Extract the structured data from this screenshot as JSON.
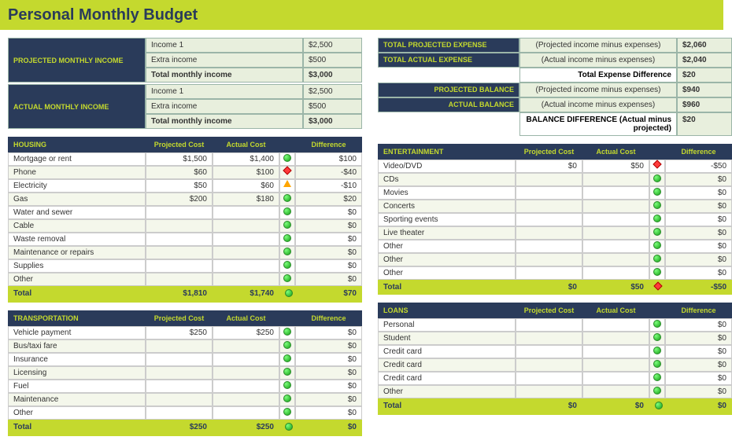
{
  "title": "Personal Monthly Budget",
  "income": {
    "projected": {
      "label": "PROJECTED MONTHLY INCOME",
      "rows": [
        {
          "label": "Income 1",
          "val": "$2,500"
        },
        {
          "label": "Extra income",
          "val": "$500"
        },
        {
          "label": "Total monthly income",
          "val": "$3,000",
          "bold": true
        }
      ]
    },
    "actual": {
      "label": "ACTUAL MONTHLY INCOME",
      "rows": [
        {
          "label": "Income 1",
          "val": "$2,500"
        },
        {
          "label": "Extra income",
          "val": "$500"
        },
        {
          "label": "Total monthly income",
          "val": "$3,000",
          "bold": true
        }
      ]
    }
  },
  "summary": [
    {
      "label": "TOTAL PROJECTED EXPENSE",
      "desc": "(Projected income minus expenses)",
      "val": "$2,060",
      "dark": true
    },
    {
      "label": "TOTAL ACTUAL EXPENSE",
      "desc": "(Actual income minus expenses)",
      "val": "$2,040",
      "dark": true
    },
    {
      "label": "",
      "desc": "Total Expense Difference",
      "val": "$20",
      "dark": false,
      "descBold": true
    },
    {
      "label": "PROJECTED BALANCE",
      "desc": "(Projected income minus expenses)",
      "val": "$940",
      "dark": true,
      "right": true
    },
    {
      "label": "ACTUAL BALANCE",
      "desc": "(Actual income minus expenses)",
      "val": "$960",
      "dark": true,
      "right": true
    },
    {
      "label": "",
      "desc": "BALANCE DIFFERENCE (Actual minus projected)",
      "val": "$20",
      "dark": false,
      "descBold": true
    }
  ],
  "colHeaders": {
    "proj": "Projected Cost",
    "act": "Actual Cost",
    "diff": "Difference"
  },
  "categories": {
    "housing": {
      "name": "HOUSING",
      "rows": [
        {
          "n": "Mortgage or rent",
          "p": "$1,500",
          "a": "$1,400",
          "i": "green",
          "d": "$100"
        },
        {
          "n": "Phone",
          "p": "$60",
          "a": "$100",
          "i": "red",
          "d": "-$40"
        },
        {
          "n": "Electricity",
          "p": "$50",
          "a": "$60",
          "i": "yellow",
          "d": "-$10"
        },
        {
          "n": "Gas",
          "p": "$200",
          "a": "$180",
          "i": "green",
          "d": "$20"
        },
        {
          "n": "Water and sewer",
          "p": "",
          "a": "",
          "i": "green",
          "d": "$0"
        },
        {
          "n": "Cable",
          "p": "",
          "a": "",
          "i": "green",
          "d": "$0"
        },
        {
          "n": "Waste removal",
          "p": "",
          "a": "",
          "i": "green",
          "d": "$0"
        },
        {
          "n": "Maintenance or repairs",
          "p": "",
          "a": "",
          "i": "green",
          "d": "$0"
        },
        {
          "n": "Supplies",
          "p": "",
          "a": "",
          "i": "green",
          "d": "$0"
        },
        {
          "n": "Other",
          "p": "",
          "a": "",
          "i": "green",
          "d": "$0"
        }
      ],
      "total": {
        "n": "Total",
        "p": "$1,810",
        "a": "$1,740",
        "i": "green",
        "d": "$70"
      }
    },
    "transportation": {
      "name": "TRANSPORTATION",
      "rows": [
        {
          "n": "Vehicle payment",
          "p": "$250",
          "a": "$250",
          "i": "green",
          "d": "$0"
        },
        {
          "n": "Bus/taxi fare",
          "p": "",
          "a": "",
          "i": "green",
          "d": "$0"
        },
        {
          "n": "Insurance",
          "p": "",
          "a": "",
          "i": "green",
          "d": "$0"
        },
        {
          "n": "Licensing",
          "p": "",
          "a": "",
          "i": "green",
          "d": "$0"
        },
        {
          "n": "Fuel",
          "p": "",
          "a": "",
          "i": "green",
          "d": "$0"
        },
        {
          "n": "Maintenance",
          "p": "",
          "a": "",
          "i": "green",
          "d": "$0"
        },
        {
          "n": "Other",
          "p": "",
          "a": "",
          "i": "green",
          "d": "$0"
        }
      ],
      "total": {
        "n": "Total",
        "p": "$250",
        "a": "$250",
        "i": "green",
        "d": "$0"
      }
    },
    "entertainment": {
      "name": "ENTERTAINMENT",
      "rows": [
        {
          "n": "Video/DVD",
          "p": "$0",
          "a": "$50",
          "i": "red",
          "d": "-$50"
        },
        {
          "n": "CDs",
          "p": "",
          "a": "",
          "i": "green",
          "d": "$0"
        },
        {
          "n": "Movies",
          "p": "",
          "a": "",
          "i": "green",
          "d": "$0"
        },
        {
          "n": "Concerts",
          "p": "",
          "a": "",
          "i": "green",
          "d": "$0"
        },
        {
          "n": "Sporting events",
          "p": "",
          "a": "",
          "i": "green",
          "d": "$0"
        },
        {
          "n": "Live theater",
          "p": "",
          "a": "",
          "i": "green",
          "d": "$0"
        },
        {
          "n": "Other",
          "p": "",
          "a": "",
          "i": "green",
          "d": "$0"
        },
        {
          "n": "Other",
          "p": "",
          "a": "",
          "i": "green",
          "d": "$0"
        },
        {
          "n": "Other",
          "p": "",
          "a": "",
          "i": "green",
          "d": "$0"
        }
      ],
      "total": {
        "n": "Total",
        "p": "$0",
        "a": "$50",
        "i": "red",
        "d": "-$50"
      }
    },
    "loans": {
      "name": "LOANS",
      "rows": [
        {
          "n": "Personal",
          "p": "",
          "a": "",
          "i": "green",
          "d": "$0"
        },
        {
          "n": "Student",
          "p": "",
          "a": "",
          "i": "green",
          "d": "$0"
        },
        {
          "n": "Credit card",
          "p": "",
          "a": "",
          "i": "green",
          "d": "$0"
        },
        {
          "n": "Credit card",
          "p": "",
          "a": "",
          "i": "green",
          "d": "$0"
        },
        {
          "n": "Credit card",
          "p": "",
          "a": "",
          "i": "green",
          "d": "$0"
        },
        {
          "n": "Other",
          "p": "",
          "a": "",
          "i": "green",
          "d": "$0"
        }
      ],
      "total": {
        "n": "Total",
        "p": "$0",
        "a": "$0",
        "i": "green",
        "d": "$0"
      }
    }
  },
  "colors": {
    "lime": "#c4d92e",
    "navy": "#2a3b5a",
    "paleGreen": "#e8efdd"
  }
}
